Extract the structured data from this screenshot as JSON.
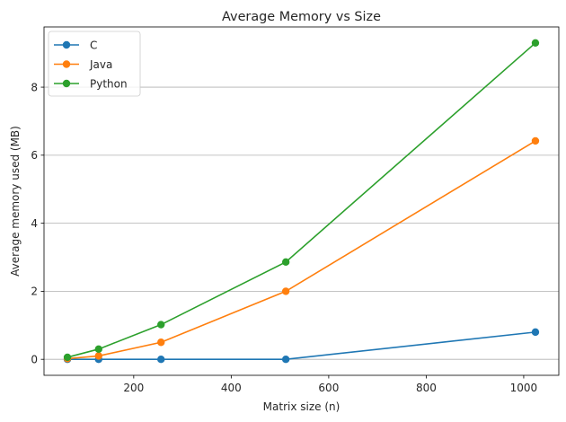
{
  "chart_data": {
    "type": "line",
    "title": "Average Memory vs Size",
    "xlabel": "Matrix size (n)",
    "ylabel": "Average memory used (MB)",
    "x": [
      64,
      128,
      256,
      512,
      1024
    ],
    "xlim": [
      16,
      1072
    ],
    "ylim": [
      -0.47,
      9.77
    ],
    "xticks": [
      200,
      400,
      600,
      800,
      1000
    ],
    "yticks": [
      0,
      2,
      4,
      6,
      8
    ],
    "grid": "horizontal",
    "legend_position": "top-left",
    "series": [
      {
        "name": "C",
        "color": "#1f77b4",
        "values": [
          0.0,
          0.0,
          0.0,
          0.0,
          0.8
        ]
      },
      {
        "name": "Java",
        "color": "#ff7f0e",
        "values": [
          0.02,
          0.1,
          0.5,
          2.0,
          6.42
        ]
      },
      {
        "name": "Python",
        "color": "#2ca02c",
        "values": [
          0.06,
          0.3,
          1.02,
          2.86,
          9.3
        ]
      }
    ]
  }
}
